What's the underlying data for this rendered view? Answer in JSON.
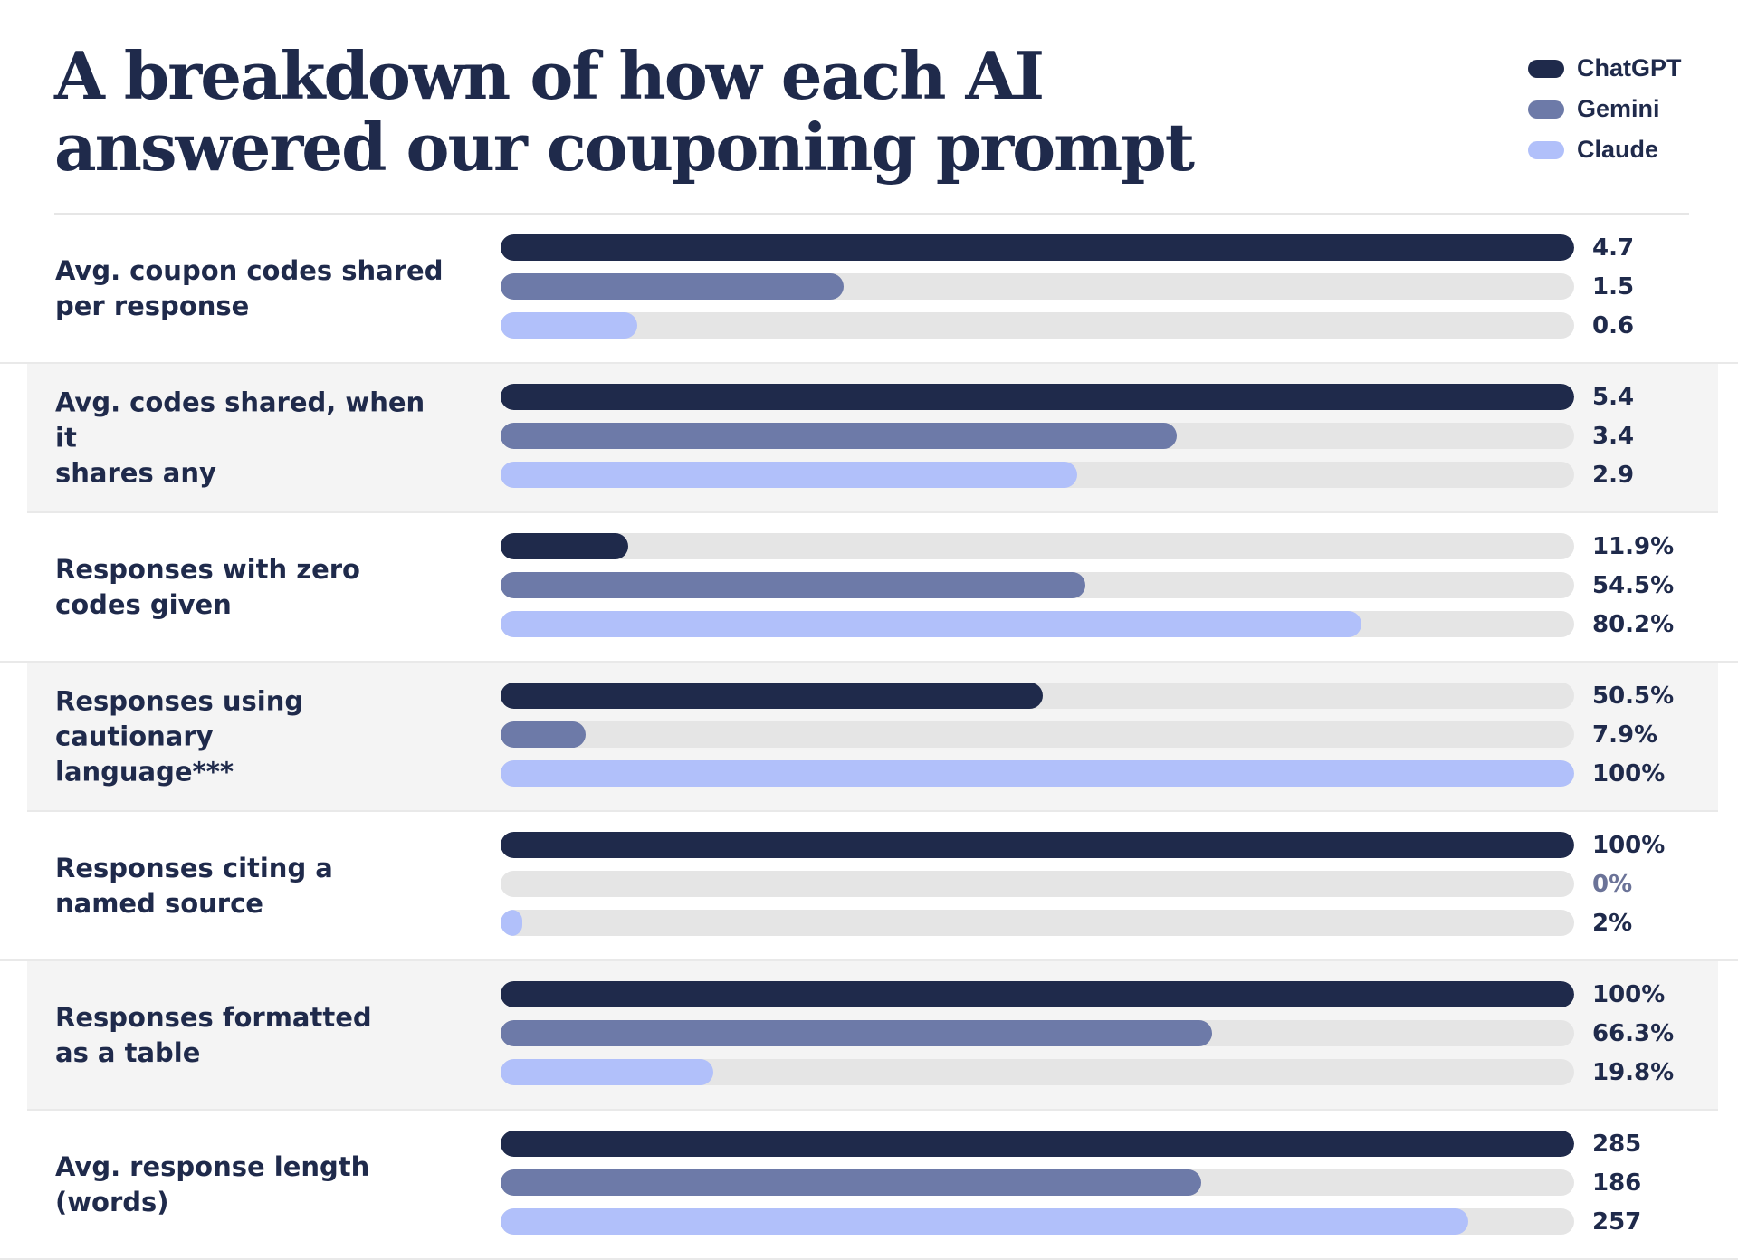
{
  "title_lines": [
    "A breakdown of how each AI",
    "answered our couponing prompt"
  ],
  "colors": {
    "ChatGPT": "#1f2a4b",
    "Gemini": "#6d7aa8",
    "Claude": "#b1c0fa",
    "track": "#e5e5e5",
    "zero_value_text": "#6b7398"
  },
  "chart_data": {
    "type": "bar",
    "orientation": "horizontal",
    "legend": {
      "placement": "top-right",
      "entries": [
        "ChatGPT",
        "Gemini",
        "Claude"
      ]
    },
    "series_names": [
      "ChatGPT",
      "Gemini",
      "Claude"
    ],
    "categories": [
      {
        "label": "Avg. coupon codes shared\nper response",
        "values": [
          4.7,
          1.5,
          0.6
        ],
        "value_labels": [
          "4.7",
          "1.5",
          "0.6"
        ],
        "max": 4.7
      },
      {
        "label": "Avg. codes shared, when it\nshares any",
        "values": [
          5.4,
          3.4,
          2.9
        ],
        "value_labels": [
          "5.4",
          "3.4",
          "2.9"
        ],
        "max": 5.4
      },
      {
        "label": "Responses with zero\ncodes given",
        "values": [
          11.9,
          54.5,
          80.2
        ],
        "value_labels": [
          "11.9%",
          "54.5%",
          "80.2%"
        ],
        "max": 100
      },
      {
        "label": "Responses using cautionary\nlanguage***",
        "values": [
          50.5,
          7.9,
          100
        ],
        "value_labels": [
          "50.5%",
          "7.9%",
          "100%"
        ],
        "max": 100
      },
      {
        "label": "Responses citing a\nnamed source",
        "values": [
          100,
          0,
          2
        ],
        "value_labels": [
          "100%",
          "0%",
          "2%"
        ],
        "max": 100
      },
      {
        "label": "Responses formatted\nas a table",
        "values": [
          100,
          66.3,
          19.8
        ],
        "value_labels": [
          "100%",
          "66.3%",
          "19.8%"
        ],
        "max": 100
      },
      {
        "label": "Avg. response length (words)",
        "values": [
          285,
          186,
          257
        ],
        "value_labels": [
          "285",
          "186",
          "257"
        ],
        "max": 285
      }
    ],
    "grid": false
  }
}
